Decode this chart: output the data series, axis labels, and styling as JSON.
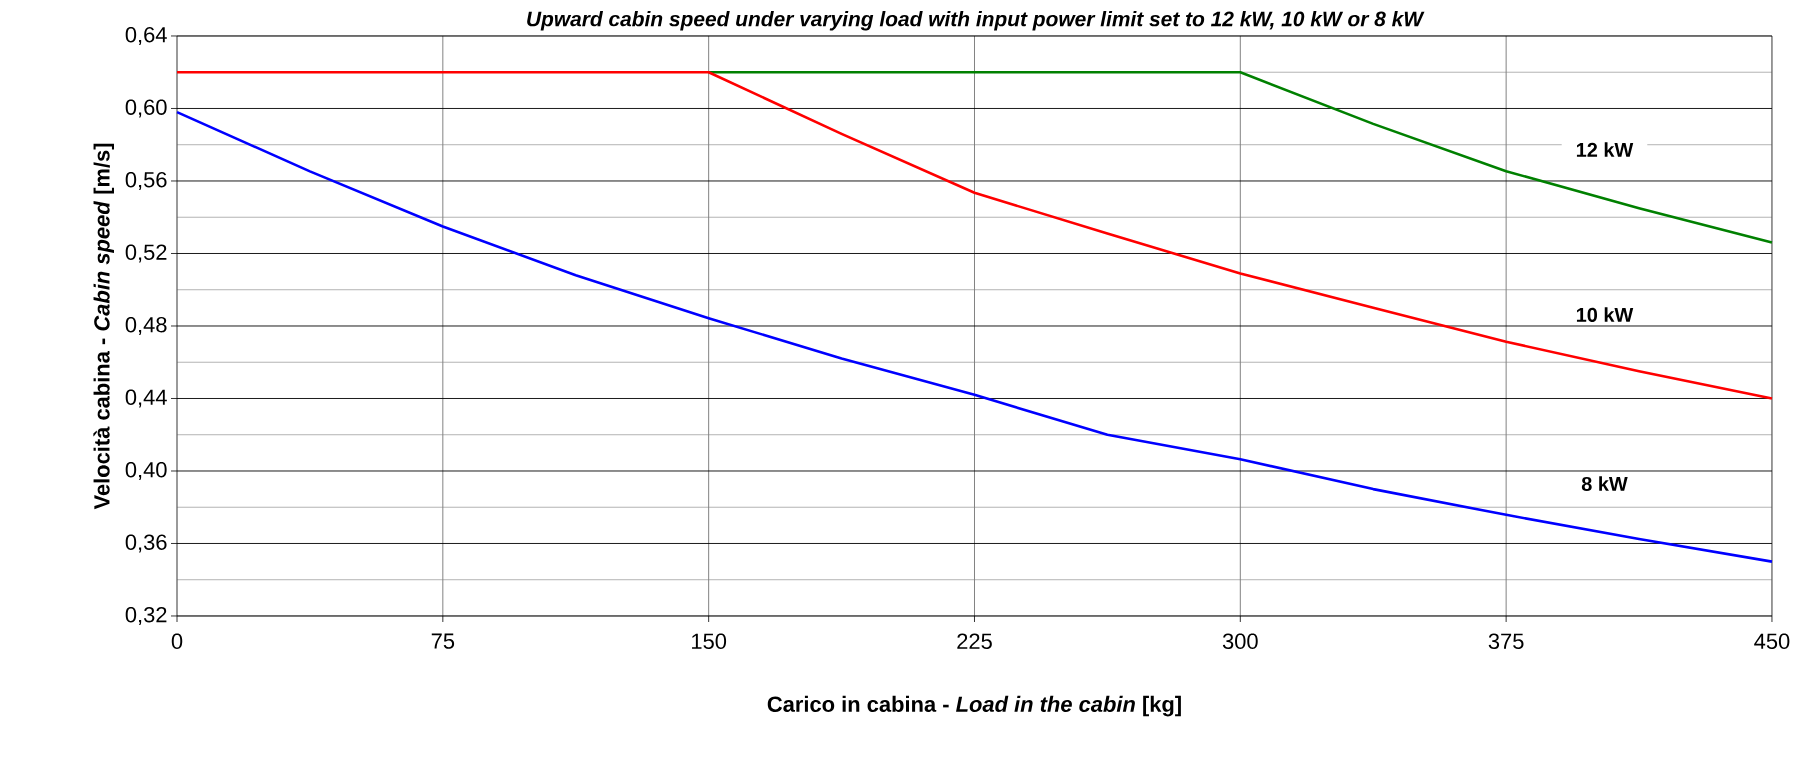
{
  "chart_data": {
    "type": "line",
    "title": "Upward cabin speed under varying load with input power limit set to 12 kW, 10 kW or 8 kW",
    "xlabel": "Carico in cabina - *Load in the cabin* [kg]",
    "ylabel": "Velocità cabina - *Cabin speed* [m/s]",
    "xlim": [
      0,
      450
    ],
    "xticks": [
      0,
      75,
      150,
      225,
      300,
      375,
      450
    ],
    "ylim": [
      0.32,
      0.64
    ],
    "yticks": [
      {
        "value": 0.32,
        "label": "0,32"
      },
      {
        "value": 0.36,
        "label": "0,36"
      },
      {
        "value": 0.4,
        "label": "0,40"
      },
      {
        "value": 0.44,
        "label": "0,44"
      },
      {
        "value": 0.48,
        "label": "0,48"
      },
      {
        "value": 0.52,
        "label": "0,52"
      },
      {
        "value": 0.56,
        "label": "0,56"
      },
      {
        "value": 0.6,
        "label": "0,60"
      },
      {
        "value": 0.64,
        "label": "0,64"
      }
    ],
    "grid": true,
    "marker": "none",
    "line_style": "solid",
    "series": [
      {
        "name": "12 kW",
        "color": "#008000",
        "x": [
          150,
          300,
          337.5,
          375,
          412.5,
          450
        ],
        "values": [
          0.62,
          0.62,
          0.5915,
          0.5654,
          0.545,
          0.526
        ]
      },
      {
        "name": "10 kW",
        "color": "#ff0000",
        "x": [
          0,
          150,
          187.5,
          225,
          262.5,
          300,
          337.5,
          375,
          412.5,
          450
        ],
        "values": [
          0.62,
          0.62,
          0.586,
          0.5535,
          0.531,
          0.509,
          0.49,
          0.4713,
          0.455,
          0.44
        ]
      },
      {
        "name": "8 kW",
        "color": "#0000ff",
        "x": [
          0,
          37.5,
          75,
          112.5,
          150,
          187.5,
          225,
          262.5,
          300,
          337.5,
          375,
          412.5,
          450
        ],
        "values": [
          0.598,
          0.5653,
          0.5349,
          0.508,
          0.4843,
          0.462,
          0.442,
          0.42,
          0.4065,
          0.39,
          0.3758,
          0.3625,
          0.35
        ]
      }
    ]
  }
}
